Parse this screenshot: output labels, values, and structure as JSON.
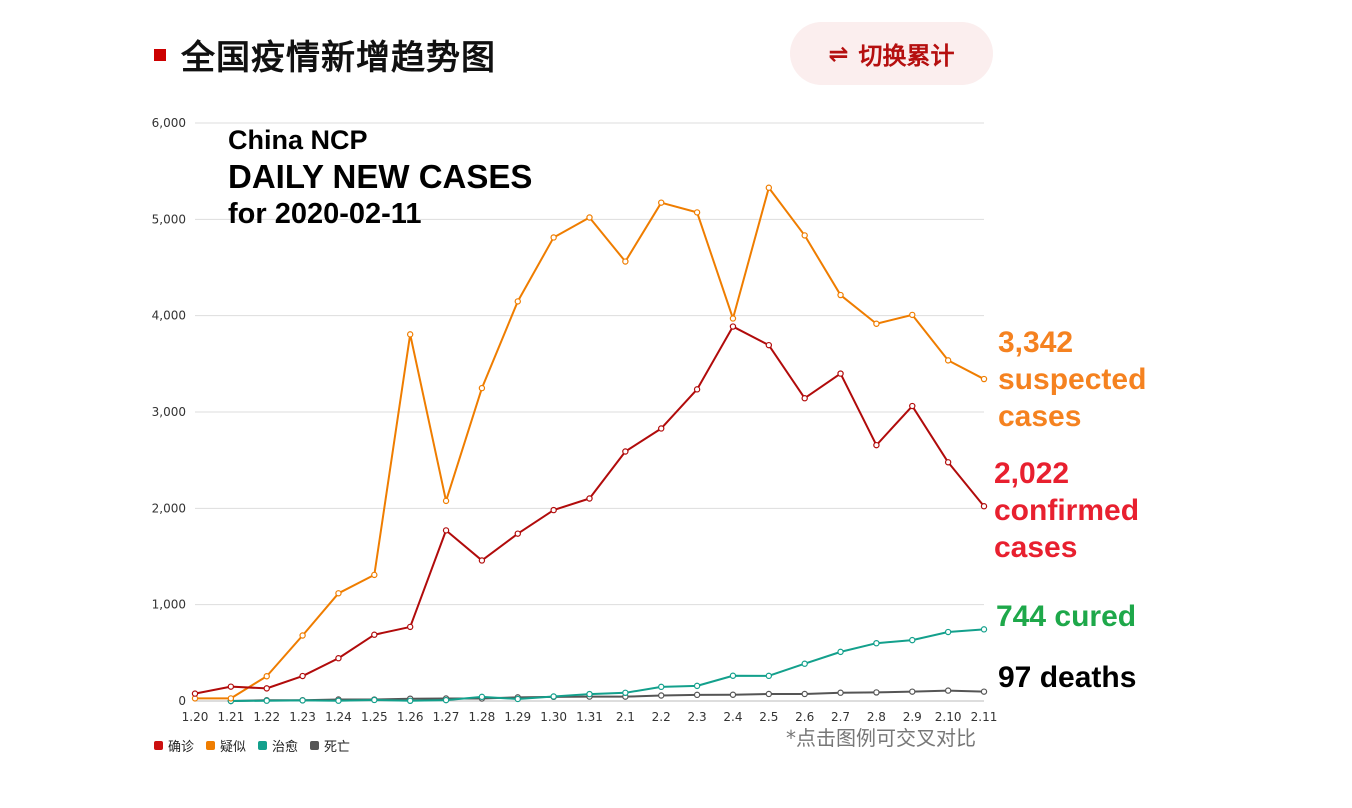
{
  "page": {
    "title": "全国疫情新增趋势图",
    "toggle_label": "切换累计",
    "toggle_icon": "⇌",
    "hint": "*点击图例可交叉对比"
  },
  "overlay": {
    "line1": "China NCP",
    "line2": "DAILY NEW CASES",
    "line3": "for 2020-02-11"
  },
  "callouts": {
    "suspected": {
      "value": "3,342",
      "line2": "suspected",
      "line3": "cases"
    },
    "confirmed": {
      "value": "2,022",
      "line2": "confirmed",
      "line3": "cases"
    },
    "cured": "744 cured",
    "deaths": "97 deaths"
  },
  "colors": {
    "confirmed": "#b10b0b",
    "suspected": "#ef7d00",
    "cured": "#13a08c",
    "deaths": "#555555",
    "title_mark": "#cc0000"
  },
  "chart_data": {
    "type": "line",
    "x": [
      "1.20",
      "1.21",
      "1.22",
      "1.23",
      "1.24",
      "1.25",
      "1.26",
      "1.27",
      "1.28",
      "1.29",
      "1.30",
      "1.31",
      "2.1",
      "2.2",
      "2.3",
      "2.4",
      "2.5",
      "2.6",
      "2.7",
      "2.8",
      "2.9",
      "2.10",
      "2.11"
    ],
    "ylim": [
      0,
      6000
    ],
    "yticks": [
      0,
      1000,
      2000,
      3000,
      4000,
      5000,
      6000
    ],
    "ytick_labels": [
      "0",
      "1,000",
      "2,000",
      "3,000",
      "4,000",
      "5,000",
      "6,000"
    ],
    "grid": true,
    "legend_position": "bottom-left",
    "series": [
      {
        "key": "suspected",
        "name": "疑似",
        "values": [
          27,
          27,
          257,
          680,
          1118,
          1309,
          3806,
          2077,
          3248,
          4148,
          4812,
          5019,
          4562,
          5173,
          5072,
          3971,
          5328,
          4833,
          4214,
          3916,
          4008,
          3536,
          3342
        ]
      },
      {
        "key": "confirmed",
        "name": "确诊",
        "values": [
          77,
          149,
          131,
          259,
          444,
          688,
          769,
          1771,
          1459,
          1737,
          1982,
          2102,
          2590,
          2829,
          3235,
          3887,
          3694,
          3143,
          3399,
          2656,
          3062,
          2478,
          2022
        ]
      },
      {
        "key": "cured",
        "name": "治愈",
        "values": null
      },
      {
        "key": "deaths",
        "name": "死亡",
        "values": null
      }
    ],
    "series_extra": {
      "cured": [
        null,
        0,
        3,
        6,
        3,
        11,
        2,
        9,
        43,
        21,
        47,
        72,
        85,
        147,
        157,
        262,
        261,
        387,
        510,
        600,
        632,
        716,
        744
      ],
      "deaths": [
        null,
        0,
        8,
        8,
        16,
        15,
        24,
        26,
        26,
        38,
        43,
        46,
        45,
        57,
        64,
        65,
        73,
        73,
        86,
        89,
        97,
        108,
        97
      ]
    }
  },
  "legend": [
    {
      "label": "确诊",
      "color": "#cc1010"
    },
    {
      "label": "疑似",
      "color": "#ef7d00"
    },
    {
      "label": "治愈",
      "color": "#13a08c"
    },
    {
      "label": "死亡",
      "color": "#555555"
    }
  ]
}
